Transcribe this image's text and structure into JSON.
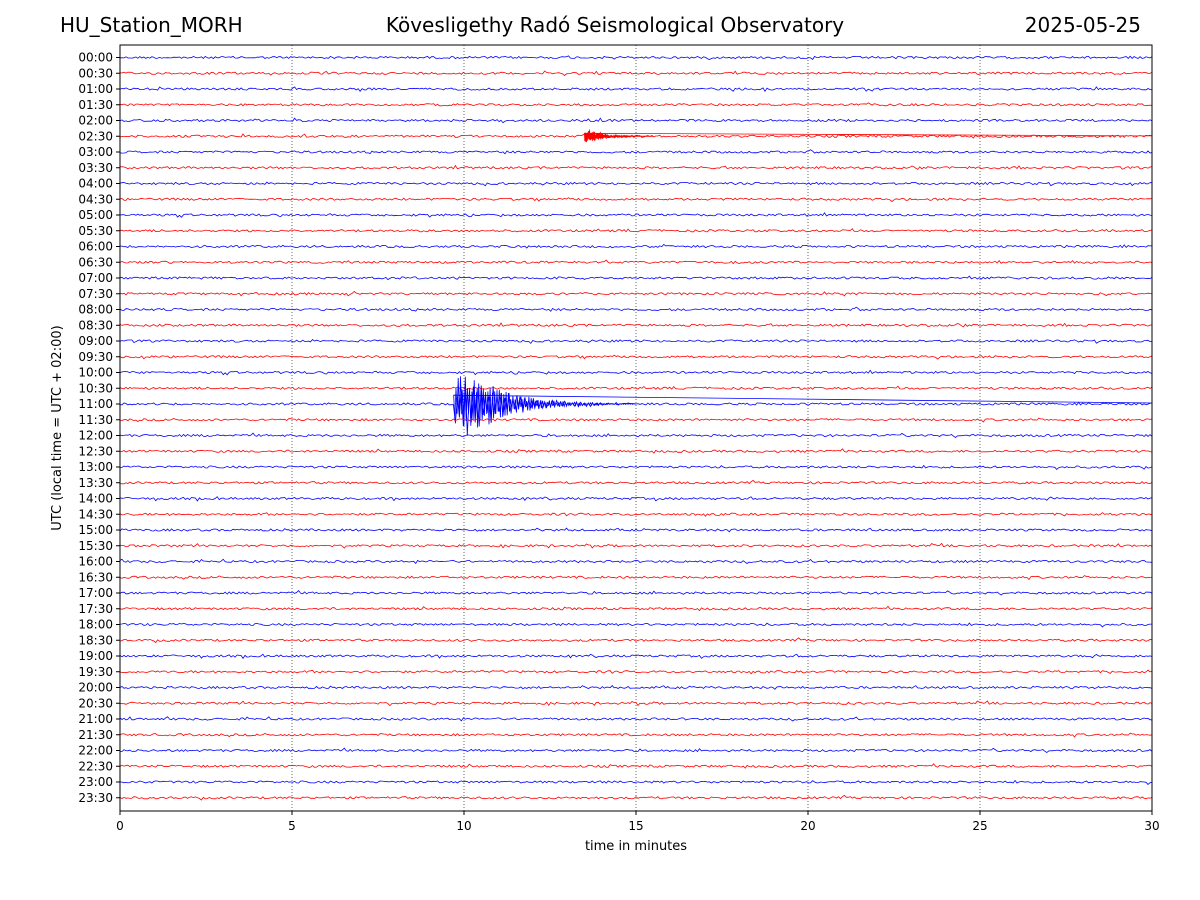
{
  "header": {
    "station": "HU_Station_MORH",
    "title": "Kövesligethy Radó Seismological Observatory",
    "date": "2025-05-25"
  },
  "chart_data": {
    "type": "line",
    "title": "Kövesligethy Radó Seismological Observatory",
    "xlabel": "time in minutes",
    "ylabel": "UTC (local time = UTC + 02:00)",
    "xlim": [
      0,
      30
    ],
    "x_ticks": [
      "0",
      "5",
      "10",
      "15",
      "20",
      "25",
      "30"
    ],
    "x_tick_values": [
      0,
      5,
      10,
      15,
      20,
      25,
      30
    ],
    "vertical_gridlines_at": [
      5,
      10,
      15,
      20,
      25
    ],
    "row_labels": [
      "00:00",
      "00:30",
      "01:00",
      "01:30",
      "02:00",
      "02:30",
      "03:00",
      "03:30",
      "04:00",
      "04:30",
      "05:00",
      "05:30",
      "06:00",
      "06:30",
      "07:00",
      "07:30",
      "08:00",
      "08:30",
      "09:00",
      "09:30",
      "10:00",
      "10:30",
      "11:00",
      "11:30",
      "12:00",
      "12:30",
      "13:00",
      "13:30",
      "14:00",
      "14:30",
      "15:00",
      "15:30",
      "16:00",
      "16:30",
      "17:00",
      "17:30",
      "18:00",
      "18:30",
      "19:00",
      "19:30",
      "20:00",
      "20:30",
      "21:00",
      "21:30",
      "22:00",
      "22:30",
      "23:00",
      "23:30"
    ],
    "row_colors": [
      "#0000ff",
      "#ff0000"
    ],
    "events": [
      {
        "row": "11:00",
        "start_minute": 9.7,
        "peak_minute": 10.2,
        "end_minute": 15.0,
        "peak_amplitude_rows": 2.2,
        "color": "#0000ff"
      },
      {
        "row": "02:30",
        "start_minute": 13.5,
        "peak_minute": 13.6,
        "end_minute": 15.5,
        "peak_amplitude_rows": 0.5,
        "color": "#ff0000"
      }
    ]
  }
}
